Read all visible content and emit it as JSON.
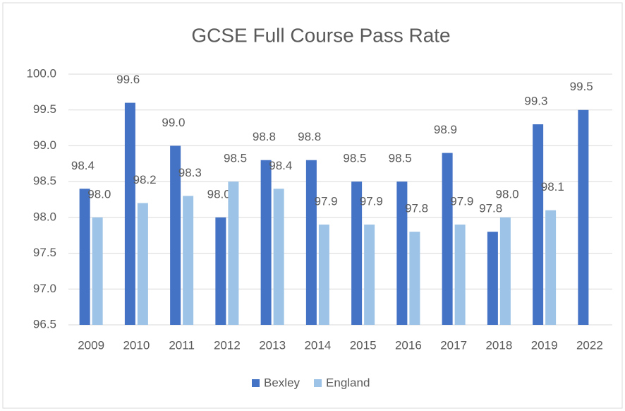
{
  "chart_data": {
    "type": "bar",
    "title": "GCSE Full Course Pass Rate",
    "categories": [
      "2009",
      "2010",
      "2011",
      "2012",
      "2013",
      "2014",
      "2015",
      "2016",
      "2017",
      "2018",
      "2019",
      "2022"
    ],
    "series": [
      {
        "name": "Bexley",
        "color": "#4472c4",
        "values": [
          98.4,
          99.6,
          99.0,
          98.0,
          98.8,
          98.8,
          98.5,
          98.5,
          98.9,
          97.8,
          99.3,
          99.5
        ],
        "value_labels": [
          "98.4",
          "99.6",
          "99.0",
          "98.0",
          "98.8",
          "98.8",
          "98.5",
          "98.5",
          "98.9",
          "97.8",
          "99.3",
          "99.5"
        ]
      },
      {
        "name": "England",
        "color": "#9dc3e6",
        "values": [
          98.0,
          98.2,
          98.3,
          98.5,
          98.4,
          97.9,
          97.9,
          97.8,
          97.9,
          98.0,
          98.1,
          null
        ],
        "value_labels": [
          "98.0",
          "98.2",
          "98.3",
          "98.5",
          "98.4",
          "97.9",
          "97.9",
          "97.8",
          "97.9",
          "98.0",
          "98.1",
          null
        ]
      }
    ],
    "ylim": [
      96.5,
      100.0
    ],
    "yticks": [
      {
        "value": 96.5,
        "label": "96.5"
      },
      {
        "value": 97.0,
        "label": "97.0"
      },
      {
        "value": 97.5,
        "label": "97.5"
      },
      {
        "value": 98.0,
        "label": "98.0"
      },
      {
        "value": 98.5,
        "label": "98.5"
      },
      {
        "value": 99.0,
        "label": "99.0"
      },
      {
        "value": 99.5,
        "label": "99.5"
      },
      {
        "value": 100.0,
        "label": "100.0"
      }
    ],
    "grid": true,
    "legend": "bottom"
  }
}
